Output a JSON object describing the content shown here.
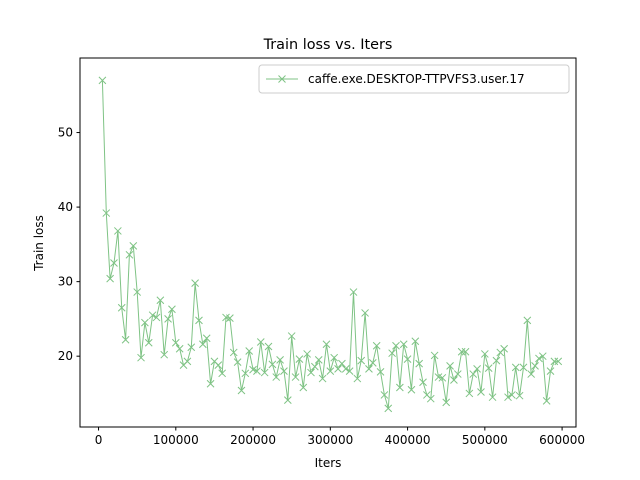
{
  "chart_data": {
    "type": "line",
    "title": "Train loss  vs. Iters",
    "xlabel": "Iters",
    "ylabel": "Train loss",
    "xlim": [
      -24000,
      618000
    ],
    "ylim": [
      10.5,
      60.0
    ],
    "xticks": [
      0,
      100000,
      200000,
      300000,
      400000,
      500000,
      600000
    ],
    "xtick_labels": [
      "0",
      "100000",
      "200000",
      "300000",
      "400000",
      "500000",
      "600000"
    ],
    "yticks": [
      20,
      30,
      40,
      50
    ],
    "ytick_labels": [
      "20",
      "30",
      "40",
      "50"
    ],
    "grid": false,
    "legend_position": "top-right",
    "series": [
      {
        "name": "caffe.exe.DESKTOP-TTPVFS3.user.17",
        "color": "#7fc385",
        "marker": "x",
        "x": [
          5000,
          10000,
          15000,
          20000,
          25000,
          30000,
          35000,
          40000,
          45000,
          50000,
          55000,
          60000,
          65000,
          70000,
          75000,
          80000,
          85000,
          90000,
          95000,
          100000,
          105000,
          110000,
          115000,
          120000,
          125000,
          130000,
          135000,
          140000,
          145000,
          150000,
          155000,
          160000,
          165000,
          170000,
          175000,
          180000,
          185000,
          190000,
          195000,
          200000,
          205000,
          210000,
          215000,
          220000,
          225000,
          230000,
          235000,
          240000,
          245000,
          250000,
          255000,
          260000,
          265000,
          270000,
          275000,
          280000,
          285000,
          290000,
          295000,
          300000,
          305000,
          310000,
          315000,
          320000,
          325000,
          330000,
          335000,
          340000,
          345000,
          350000,
          355000,
          360000,
          365000,
          370000,
          375000,
          380000,
          385000,
          390000,
          395000,
          400000,
          405000,
          410000,
          415000,
          420000,
          425000,
          430000,
          435000,
          440000,
          445000,
          450000,
          455000,
          460000,
          465000,
          470000,
          475000,
          480000,
          485000,
          490000,
          495000,
          500000,
          505000,
          510000,
          515000,
          520000,
          525000,
          530000,
          535000,
          540000,
          545000,
          550000,
          555000,
          560000,
          565000,
          570000,
          575000,
          580000,
          585000,
          590000,
          595000
        ],
        "y": [
          57.0,
          39.2,
          30.4,
          32.5,
          36.8,
          26.5,
          22.2,
          33.6,
          34.8,
          28.6,
          19.8,
          24.5,
          21.8,
          25.5,
          25.2,
          27.5,
          20.2,
          25.0,
          26.3,
          21.8,
          21.0,
          18.8,
          19.3,
          21.2,
          29.8,
          24.8,
          21.6,
          22.4,
          16.3,
          19.3,
          18.8,
          17.7,
          25.2,
          25.1,
          20.5,
          19.2,
          15.4,
          17.7,
          20.7,
          18.2,
          18.0,
          21.9,
          17.8,
          21.3,
          18.9,
          17.2,
          19.5,
          18.0,
          14.1,
          22.7,
          17.2,
          19.6,
          15.8,
          20.3,
          17.8,
          18.6,
          19.5,
          17.0,
          21.6,
          18.0,
          19.8,
          18.3,
          19.0,
          18.3,
          18.0,
          28.6,
          17.0,
          19.4,
          25.8,
          18.3,
          19.1,
          21.4,
          17.9,
          14.8,
          13.0,
          20.4,
          21.4,
          15.8,
          21.6,
          19.6,
          15.5,
          22.0,
          19.0,
          16.5,
          14.8,
          14.3,
          20.1,
          17.2,
          17.1,
          13.8,
          18.7,
          16.8,
          17.6,
          20.6,
          20.6,
          15.0,
          17.6,
          18.3,
          15.2,
          20.3,
          18.4,
          14.5,
          19.4,
          20.5,
          21.0,
          14.5,
          14.8,
          18.5,
          14.7,
          18.5,
          24.8,
          17.6,
          18.7,
          19.7,
          20.0,
          14.0,
          18.0,
          19.3,
          19.3
        ]
      }
    ]
  }
}
